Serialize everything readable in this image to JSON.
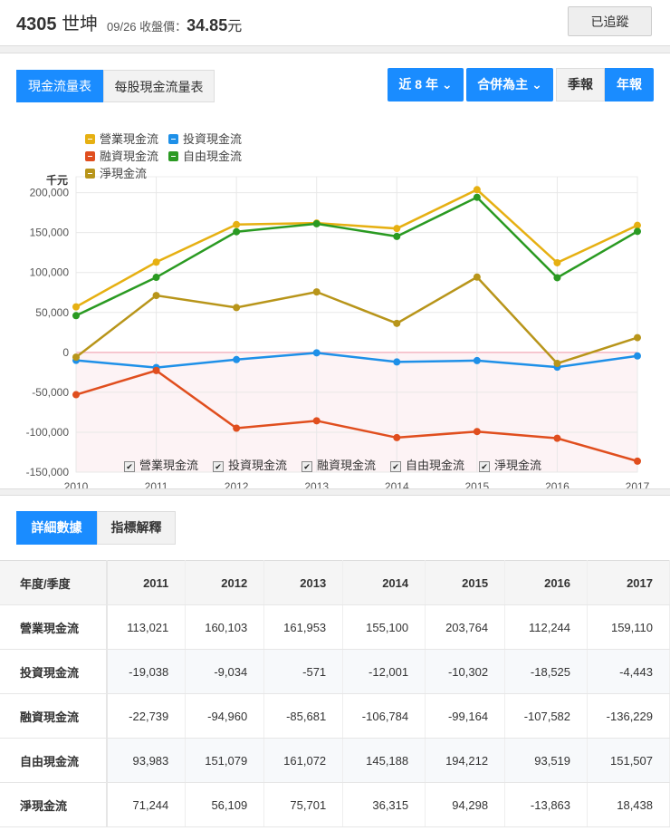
{
  "header": {
    "code": "4305",
    "name": "世坤",
    "date_label": "09/26 收盤價：",
    "price": "34.85",
    "unit": "元",
    "track_label": "已追蹤"
  },
  "tabs": {
    "cashflow": "現金流量表",
    "per_share": "每股現金流量表"
  },
  "controls": {
    "period": "近 8 年",
    "basis": "合併為主",
    "quarterly": "季報",
    "annual": "年報"
  },
  "chart_data": {
    "type": "line",
    "unit_label": "千元",
    "x": [
      "2010",
      "2011",
      "2012",
      "2013",
      "2014",
      "2015",
      "2016",
      "2017"
    ],
    "ylim": [
      -150000,
      220000
    ],
    "yticks": [
      -150000,
      -100000,
      -50000,
      0,
      50000,
      100000,
      150000,
      200000
    ],
    "ytick_labels": [
      "-150,000",
      "-100,000",
      "-50,000",
      "0",
      "50,000",
      "100,000",
      "150,000",
      "200,000"
    ],
    "grid": true,
    "legend_position": "top-left",
    "series": [
      {
        "name": "營業現金流",
        "color": "#e6b012",
        "values": [
          57000,
          113021,
          160103,
          161953,
          155100,
          203764,
          112244,
          159110
        ]
      },
      {
        "name": "投資現金流",
        "color": "#1e90e8",
        "values": [
          -10000,
          -19038,
          -9034,
          -571,
          -12001,
          -10302,
          -18525,
          -4443
        ]
      },
      {
        "name": "融資現金流",
        "color": "#e04e1e",
        "values": [
          -53000,
          -22739,
          -94960,
          -85681,
          -106784,
          -99164,
          -107582,
          -136229
        ]
      },
      {
        "name": "自由現金流",
        "color": "#2a9a22",
        "values": [
          46000,
          93983,
          151079,
          161072,
          145188,
          194212,
          93519,
          151507
        ]
      },
      {
        "name": "淨現金流",
        "color": "#b8951a",
        "values": [
          -6000,
          71244,
          56109,
          75701,
          36315,
          94298,
          -13863,
          18438
        ]
      }
    ]
  },
  "detail_tabs": {
    "detail": "詳細數據",
    "explain": "指標解釋"
  },
  "table": {
    "header_label": "年度/季度",
    "years": [
      "2011",
      "2012",
      "2013",
      "2014",
      "2015",
      "2016",
      "2017"
    ],
    "rows": [
      {
        "label": "營業現金流",
        "values": [
          "113,021",
          "160,103",
          "161,953",
          "155,100",
          "203,764",
          "112,244",
          "159,110"
        ]
      },
      {
        "label": "投資現金流",
        "values": [
          "-19,038",
          "-9,034",
          "-571",
          "-12,001",
          "-10,302",
          "-18,525",
          "-4,443"
        ]
      },
      {
        "label": "融資現金流",
        "values": [
          "-22,739",
          "-94,960",
          "-85,681",
          "-106,784",
          "-99,164",
          "-107,582",
          "-136,229"
        ]
      },
      {
        "label": "自由現金流",
        "values": [
          "93,983",
          "151,079",
          "161,072",
          "145,188",
          "194,212",
          "93,519",
          "151,507"
        ]
      },
      {
        "label": "淨現金流",
        "values": [
          "71,244",
          "56,109",
          "75,701",
          "36,315",
          "94,298",
          "-13,863",
          "18,438"
        ]
      }
    ]
  }
}
